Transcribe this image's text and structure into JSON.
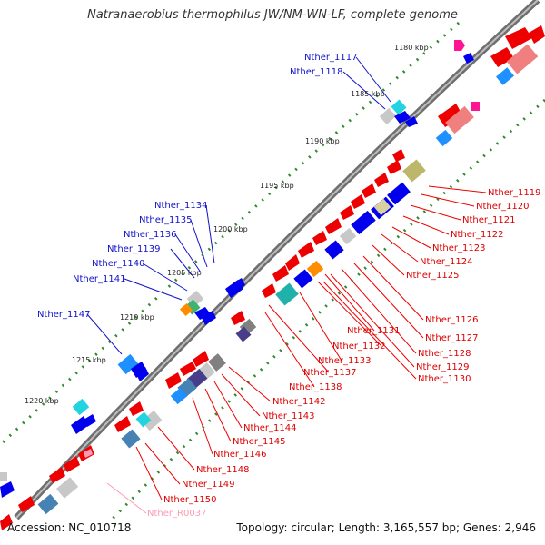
{
  "title": "Natranaerobius thermophilus JW/NM-WN-LF, complete genome",
  "footer": {
    "accession": "Accession: NC_010718",
    "summary": "Topology: circular; Length: 3,165,557 bp; Genes: 2,946"
  },
  "colors": {
    "backbone": "#7a7a7a",
    "tick": "#2e8b2e",
    "label_forward": "#1111cc",
    "label_reverse": "#dd0000",
    "label_rna": "#ff9ab4"
  },
  "scale_labels": [
    "1180 kbp",
    "1185 kbp",
    "1190 kbp",
    "1195 kbp",
    "1200 kbp",
    "1205 kbp",
    "1210 kbp",
    "1215 kbp",
    "1220 kbp"
  ],
  "forward_labels": [
    "Nther_1117",
    "Nther_1118",
    "Nther_1134",
    "Nther_1135",
    "Nther_1136",
    "Nther_1139",
    "Nther_1140",
    "Nther_1141",
    "Nther_1147"
  ],
  "reverse_labels": [
    "Nther_1119",
    "Nther_1120",
    "Nther_1121",
    "Nther_1122",
    "Nther_1123",
    "Nther_1124",
    "Nther_1125",
    "Nther_1126",
    "Nther_1127",
    "Nther_1131",
    "Nther_1128",
    "Nther_1132",
    "Nther_1129",
    "Nther_1133",
    "Nther_1130",
    "Nther_1137",
    "Nther_1138",
    "Nther_1142",
    "Nther_1143",
    "Nther_1144",
    "Nther_1145",
    "Nther_1146",
    "Nther_1148",
    "Nther_1149",
    "Nther_1150"
  ],
  "rna_labels": [
    "Nther_R0037"
  ]
}
